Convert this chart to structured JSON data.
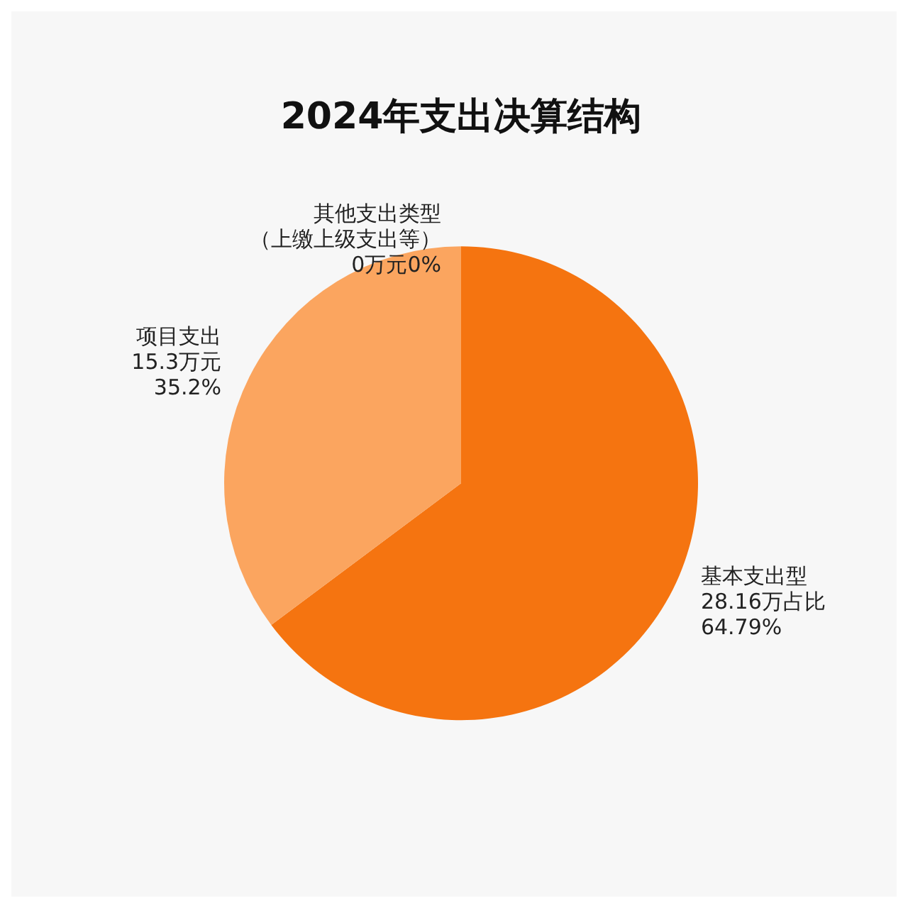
{
  "chart_data": {
    "type": "pie",
    "title": "2024年支出决算结构",
    "categories": [
      "基本支出型",
      "项目支出",
      "其他支出类型（上缴上级支出等）"
    ],
    "values": [
      28.16,
      15.3,
      0
    ],
    "colors": [
      "#f57410",
      "#fba55f",
      "#fdc59a"
    ],
    "value_labels": [
      "28.16万占比\n64.79%",
      "15.3万元\n35.2%",
      "0万元0%"
    ],
    "legend": false
  }
}
